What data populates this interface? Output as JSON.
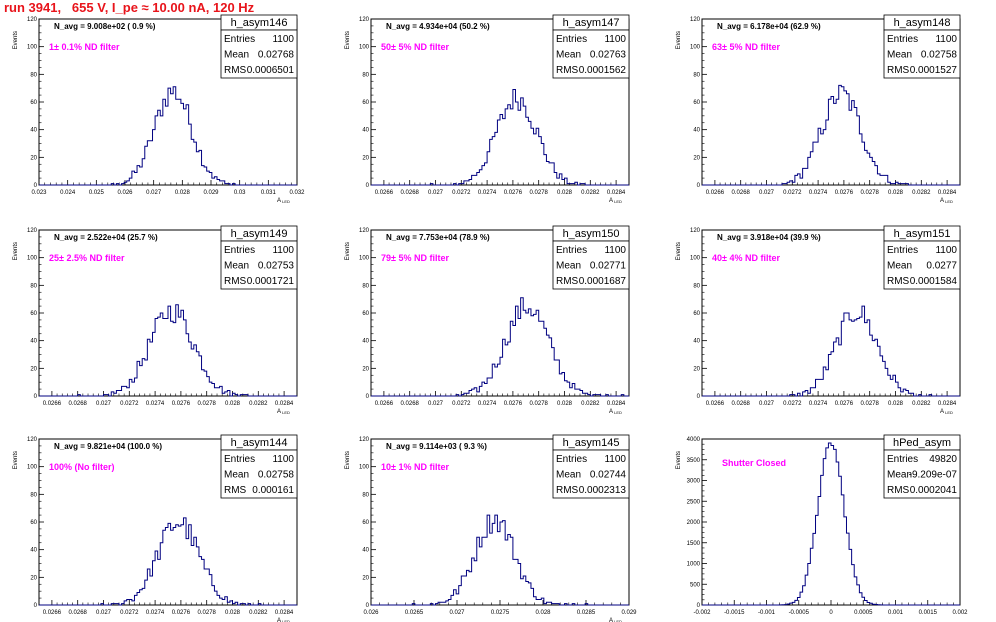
{
  "title": "run 3941,   655 V, I_pe ≈ 10.00 nA, 120 Hz",
  "colors": {
    "title": "#e8141b",
    "hist": "#000080",
    "filter": "#ff00ff"
  },
  "chart_data": [
    {
      "type": "histogram",
      "name": "h_asym146",
      "stats": {
        "Entries": "1100",
        "Mean": "0.02768",
        "RMS": "0.0006501"
      },
      "n_avg": "N_avg = 9.008e+02 ( 0.9 %)",
      "filter": "1± 0.1% ND filter",
      "xlabel": "A_LED",
      "ylabel": "Events",
      "ylim": [
        0,
        120
      ],
      "yticks": [
        "0",
        "20",
        "40",
        "60",
        "80",
        "100",
        "120"
      ],
      "xticks": [
        "0.023",
        "0.024",
        "0.025",
        "0.026",
        "0.027",
        "0.028",
        "0.029",
        "0.03",
        "0.031",
        "0.032"
      ],
      "xrange": [
        0.023,
        0.032
      ],
      "mean": 0.02768,
      "rms": 0.0006501,
      "peak": 68
    },
    {
      "type": "histogram",
      "name": "h_asym147",
      "stats": {
        "Entries": "1100",
        "Mean": "0.02763",
        "RMS": "0.0001562"
      },
      "n_avg": "N_avg = 4.934e+04 (50.2 %)",
      "filter": "50± 5% ND filter",
      "xlabel": "A_LED",
      "ylabel": "Events",
      "ylim": [
        0,
        120
      ],
      "yticks": [
        "0",
        "20",
        "40",
        "60",
        "80",
        "100",
        "120"
      ],
      "xticks": [
        "0.0266",
        "0.0268",
        "0.027",
        "0.0272",
        "0.0274",
        "0.0276",
        "0.0278",
        "0.028",
        "0.0282",
        "0.0284"
      ],
      "xrange": [
        0.0265,
        0.0285
      ],
      "mean": 0.02763,
      "rms": 0.0001562,
      "peak": 63
    },
    {
      "type": "histogram",
      "name": "h_asym148",
      "stats": {
        "Entries": "1100",
        "Mean": "0.02758",
        "RMS": "0.0001527"
      },
      "n_avg": "N_avg = 6.178e+04 (62.9 %)",
      "filter": "63± 5% ND filter",
      "xlabel": "A_LED",
      "ylabel": "Events",
      "ylim": [
        0,
        120
      ],
      "yticks": [
        "0",
        "20",
        "40",
        "60",
        "80",
        "100",
        "120"
      ],
      "xticks": [
        "0.0266",
        "0.0268",
        "0.027",
        "0.0272",
        "0.0274",
        "0.0276",
        "0.0278",
        "0.028",
        "0.0282",
        "0.0284"
      ],
      "xrange": [
        0.0265,
        0.0285
      ],
      "mean": 0.02758,
      "rms": 0.0001527,
      "peak": 66
    },
    {
      "type": "histogram",
      "name": "h_asym149",
      "stats": {
        "Entries": "1100",
        "Mean": "0.02753",
        "RMS": "0.0001721"
      },
      "n_avg": "N_avg = 2.522e+04 (25.7 %)",
      "filter": "25± 2.5% ND filter",
      "xlabel": "A_LED",
      "ylabel": "Events",
      "ylim": [
        0,
        120
      ],
      "yticks": [
        "0",
        "20",
        "40",
        "60",
        "80",
        "100",
        "120"
      ],
      "xticks": [
        "0.0266",
        "0.0268",
        "0.027",
        "0.0272",
        "0.0274",
        "0.0276",
        "0.0278",
        "0.028",
        "0.0282",
        "0.0284"
      ],
      "xrange": [
        0.0265,
        0.0285
      ],
      "mean": 0.02753,
      "rms": 0.0001721,
      "peak": 62
    },
    {
      "type": "histogram",
      "name": "h_asym150",
      "stats": {
        "Entries": "1100",
        "Mean": "0.02771",
        "RMS": "0.0001687"
      },
      "n_avg": "N_avg = 7.753e+04 (78.9 %)",
      "filter": "79± 5% ND filter",
      "xlabel": "A_LED",
      "ylabel": "Events",
      "ylim": [
        0,
        120
      ],
      "yticks": [
        "0",
        "20",
        "40",
        "60",
        "80",
        "100",
        "120"
      ],
      "xticks": [
        "0.0266",
        "0.0268",
        "0.027",
        "0.0272",
        "0.0274",
        "0.0276",
        "0.0278",
        "0.028",
        "0.0282",
        "0.0284"
      ],
      "xrange": [
        0.0265,
        0.0285
      ],
      "mean": 0.02771,
      "rms": 0.0001687,
      "peak": 65
    },
    {
      "type": "histogram",
      "name": "h_asym151",
      "stats": {
        "Entries": "1100",
        "Mean": "0.0277",
        "RMS": "0.0001584"
      },
      "n_avg": "N_avg = 3.918e+04 (39.9 %)",
      "filter": "40± 4% ND filter",
      "xlabel": "A_LED",
      "ylabel": "Events",
      "ylim": [
        0,
        120
      ],
      "yticks": [
        "0",
        "20",
        "40",
        "60",
        "80",
        "100",
        "120"
      ],
      "xticks": [
        "0.0266",
        "0.0268",
        "0.027",
        "0.0272",
        "0.0274",
        "0.0276",
        "0.0278",
        "0.028",
        "0.0282",
        "0.0284"
      ],
      "xrange": [
        0.0265,
        0.0285
      ],
      "mean": 0.0277,
      "rms": 0.0001584,
      "peak": 61
    },
    {
      "type": "histogram",
      "name": "h_asym144",
      "stats": {
        "Entries": "1100",
        "Mean": "0.02758",
        "RMS": "0.000161"
      },
      "n_avg": "N_avg = 9.821e+04 (100.0 %)",
      "filter": "100% (No filter)",
      "xlabel": "A_LED",
      "ylabel": "Events",
      "ylim": [
        0,
        120
      ],
      "yticks": [
        "0",
        "20",
        "40",
        "60",
        "80",
        "100",
        "120"
      ],
      "xticks": [
        "0.0266",
        "0.0268",
        "0.027",
        "0.0272",
        "0.0274",
        "0.0276",
        "0.0278",
        "0.028",
        "0.0282",
        "0.0284"
      ],
      "xrange": [
        0.0265,
        0.0285
      ],
      "mean": 0.02758,
      "rms": 0.000161,
      "peak": 60
    },
    {
      "type": "histogram",
      "name": "h_asym145",
      "stats": {
        "Entries": "1100",
        "Mean": "0.02744",
        "RMS": "0.0002313"
      },
      "n_avg": "N_avg = 9.114e+03 ( 9.3 %)",
      "filter": "10± 1% ND filter",
      "xlabel": "A_LED",
      "ylabel": "Events",
      "ylim": [
        0,
        120
      ],
      "yticks": [
        "0",
        "20",
        "40",
        "60",
        "80",
        "100",
        "120"
      ],
      "xticks": [
        "0.026",
        "0.0265",
        "0.027",
        "0.0275",
        "0.028",
        "0.0285",
        "0.029"
      ],
      "xrange": [
        0.026,
        0.029
      ],
      "mean": 0.02744,
      "rms": 0.0002313,
      "peak": 62
    },
    {
      "type": "histogram",
      "name": "hPed_asym",
      "stats": {
        "Entries": "49820",
        "Mean": "-9.209e-07",
        "RMS": "0.0002041"
      },
      "n_avg": "",
      "filter": "Shutter Closed",
      "xlabel": "",
      "ylabel": "Events",
      "ylim": [
        0,
        4000
      ],
      "yticks": [
        "0",
        "500",
        "1000",
        "1500",
        "2000",
        "2500",
        "3000",
        "3500",
        "4000"
      ],
      "xticks": [
        "-0.002",
        "-0.0015",
        "-0.001",
        "-0.0005",
        "0",
        "0.0005",
        "0.001",
        "0.0015",
        "0.002"
      ],
      "xrange": [
        -0.002,
        0.002
      ],
      "mean": -9.21e-07,
      "rms": 0.0002041,
      "peak": 3900
    }
  ]
}
